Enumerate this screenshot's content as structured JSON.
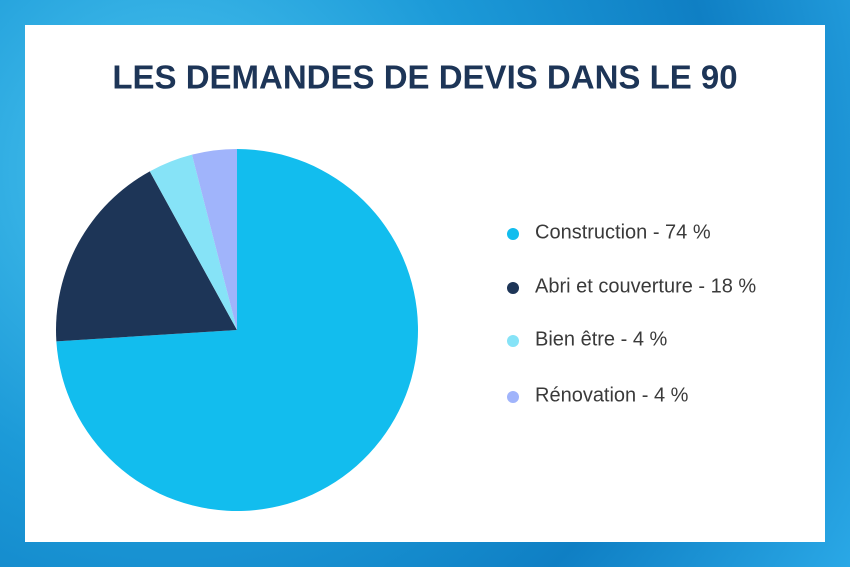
{
  "chart_data": {
    "type": "pie",
    "title": "LES DEMANDES DE DEVIS DANS LE 90",
    "categories": [
      "Construction - 74 %",
      "Abri et couverture - 18 %",
      "Bien être - 4 %",
      "Rénovation - 4 %"
    ],
    "values": [
      74,
      18,
      4,
      4
    ],
    "colors": [
      "#12bdee",
      "#1d3557",
      "#86e3f7",
      "#a0b4fb"
    ],
    "legend": "right"
  }
}
